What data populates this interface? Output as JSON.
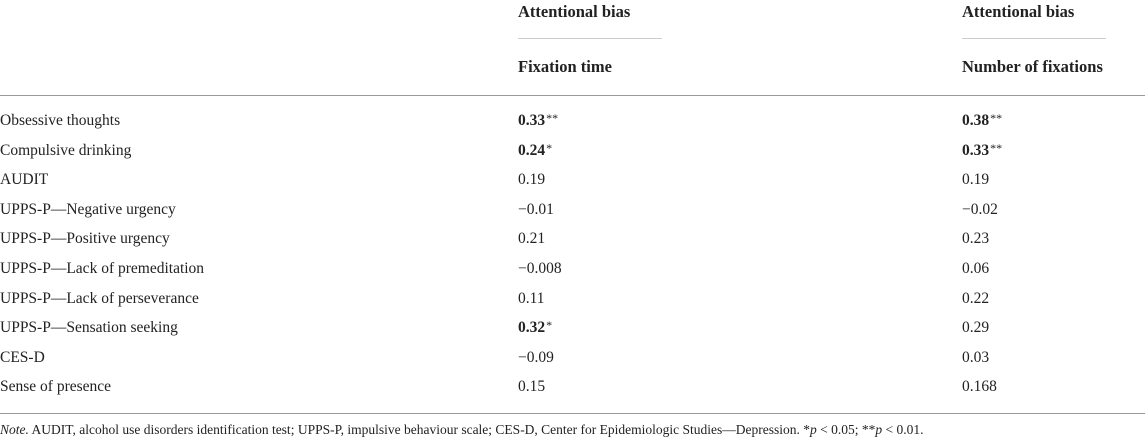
{
  "table": {
    "header_groups": [
      "Attentional bias",
      "Attentional bias"
    ],
    "columns": [
      "Fixation time",
      "Number of fixations"
    ],
    "rows": [
      {
        "label": "Obsessive thoughts",
        "cells": [
          {
            "value": "0.33",
            "sig": "**",
            "bold": true
          },
          {
            "value": "0.38",
            "sig": "**",
            "bold": true
          }
        ]
      },
      {
        "label": "Compulsive drinking",
        "cells": [
          {
            "value": "0.24",
            "sig": "*",
            "bold": true
          },
          {
            "value": "0.33",
            "sig": "**",
            "bold": true
          }
        ]
      },
      {
        "label": "AUDIT",
        "cells": [
          {
            "value": "0.19"
          },
          {
            "value": "0.19"
          }
        ]
      },
      {
        "label": "UPPS-P—Negative urgency",
        "cells": [
          {
            "value": "−0.01"
          },
          {
            "value": "−0.02"
          }
        ]
      },
      {
        "label": "UPPS-P—Positive urgency",
        "cells": [
          {
            "value": "0.21"
          },
          {
            "value": "0.23"
          }
        ]
      },
      {
        "label": "UPPS-P—Lack of premeditation",
        "cells": [
          {
            "value": "−0.008"
          },
          {
            "value": "0.06"
          }
        ]
      },
      {
        "label": "UPPS-P—Lack of perseverance",
        "cells": [
          {
            "value": "0.11"
          },
          {
            "value": "0.22"
          }
        ]
      },
      {
        "label": "UPPS-P—Sensation seeking",
        "cells": [
          {
            "value": "0.32",
            "sig": "*",
            "bold": true
          },
          {
            "value": "0.29"
          }
        ]
      },
      {
        "label": "CES-D",
        "cells": [
          {
            "value": "−0.09"
          },
          {
            "value": "0.03"
          }
        ]
      },
      {
        "label": "Sense of presence",
        "cells": [
          {
            "value": "0.15"
          },
          {
            "value": "0.168"
          }
        ]
      }
    ],
    "note": [
      {
        "text": "Note.",
        "italic": true
      },
      {
        "text": " AUDIT, alcohol use disorders identification test; UPPS-P, impulsive behaviour scale; CES-D, Center for Epidemiologic Studies—Depression. *"
      },
      {
        "text": "p",
        "italic": true
      },
      {
        "text": " < 0.05; **"
      },
      {
        "text": "p",
        "italic": true
      },
      {
        "text": " < 0.01."
      }
    ]
  }
}
